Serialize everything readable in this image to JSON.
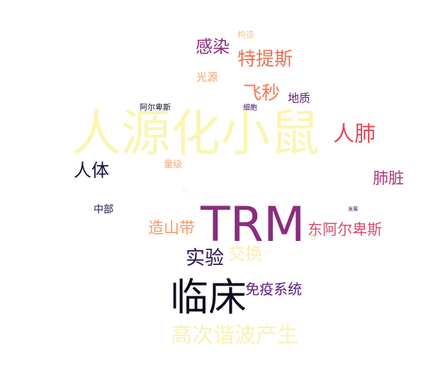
{
  "words": [
    {
      "key": "renyuan",
      "text": "人源化小鼠",
      "color": "#fbf5b4"
    },
    {
      "key": "trm",
      "text": "TRM",
      "color": "#8a2d7d"
    },
    {
      "key": "linchuang",
      "text": "临床",
      "color": "#0e0a20"
    },
    {
      "key": "gaoci",
      "text": "高次谐波产生",
      "color": "#fbf1b4"
    },
    {
      "key": "renfei",
      "text": "人肺",
      "color": "#e2495a"
    },
    {
      "key": "tetisi",
      "text": "特提斯",
      "color": "#f0714e"
    },
    {
      "key": "ganran",
      "text": "感染",
      "color": "#8a2d7d"
    },
    {
      "key": "feimiao",
      "text": "飞秒",
      "color": "#f57a52"
    },
    {
      "key": "renti",
      "text": "人体",
      "color": "#1a1239"
    },
    {
      "key": "feizang",
      "text": "肺脏",
      "color": "#b53679"
    },
    {
      "key": "zaoshan",
      "text": "造山带",
      "color": "#f6996a"
    },
    {
      "key": "dongaer",
      "text": "东阿尔卑斯",
      "color": "#dd4a6b"
    },
    {
      "key": "shiyan",
      "text": "实验",
      "color": "#2a0f50"
    },
    {
      "key": "jiaohuan",
      "text": "交换",
      "color": "#fcedb0"
    },
    {
      "key": "mianyi",
      "text": "免疫系统",
      "color": "#5a1a7a"
    },
    {
      "key": "dizhi",
      "text": "地质",
      "color": "#5c1a70"
    },
    {
      "key": "guangyuan",
      "text": "光源",
      "color": "#f3a072"
    },
    {
      "key": "gouzao",
      "text": "构造",
      "color": "#f9c08a"
    },
    {
      "key": "aerbei",
      "text": "阿尔卑斯",
      "color": "#120c2c"
    },
    {
      "key": "xibao",
      "text": "细胞",
      "color": "#4a1465"
    },
    {
      "key": "liangji",
      "text": "量级",
      "color": "#f6ab7c"
    },
    {
      "key": "zhongbu",
      "text": "中部",
      "color": "#1e1443"
    },
    {
      "key": "fazhan",
      "text": "发展",
      "color": "#3a1660"
    },
    {
      "key": "ceng",
      "text": "层",
      "color": "#fbd3a6"
    },
    {
      "key": "xiao",
      "text": "鼠",
      "color": "#fdf2c8"
    }
  ]
}
